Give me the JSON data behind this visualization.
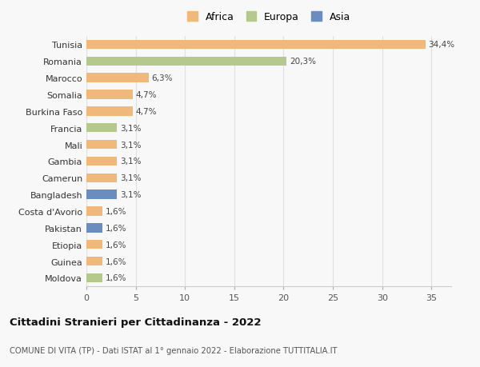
{
  "countries": [
    "Tunisia",
    "Romania",
    "Marocco",
    "Somalia",
    "Burkina Faso",
    "Francia",
    "Mali",
    "Gambia",
    "Camerun",
    "Bangladesh",
    "Costa d'Avorio",
    "Pakistan",
    "Etiopia",
    "Guinea",
    "Moldova"
  ],
  "values": [
    34.4,
    20.3,
    6.3,
    4.7,
    4.7,
    3.1,
    3.1,
    3.1,
    3.1,
    3.1,
    1.6,
    1.6,
    1.6,
    1.6,
    1.6
  ],
  "labels": [
    "34,4%",
    "20,3%",
    "6,3%",
    "4,7%",
    "4,7%",
    "3,1%",
    "3,1%",
    "3,1%",
    "3,1%",
    "3,1%",
    "1,6%",
    "1,6%",
    "1,6%",
    "1,6%",
    "1,6%"
  ],
  "colors": [
    "#f0b87a",
    "#b5c98e",
    "#f0b87a",
    "#f0b87a",
    "#f0b87a",
    "#b5c98e",
    "#f0b87a",
    "#f0b87a",
    "#f0b87a",
    "#6b8cbf",
    "#f0b87a",
    "#6b8cbf",
    "#f0b87a",
    "#f0b87a",
    "#b5c98e"
  ],
  "legend_labels": [
    "Africa",
    "Europa",
    "Asia"
  ],
  "legend_colors": [
    "#f0b87a",
    "#b5c98e",
    "#6b8cbf"
  ],
  "title": "Cittadini Stranieri per Cittadinanza - 2022",
  "subtitle": "COMUNE DI VITA (TP) - Dati ISTAT al 1° gennaio 2022 - Elaborazione TUTTITALIA.IT",
  "xlim": [
    0,
    37
  ],
  "xticks": [
    0,
    5,
    10,
    15,
    20,
    25,
    30,
    35
  ],
  "background_color": "#f8f8f8",
  "grid_color": "#e0e0e0"
}
